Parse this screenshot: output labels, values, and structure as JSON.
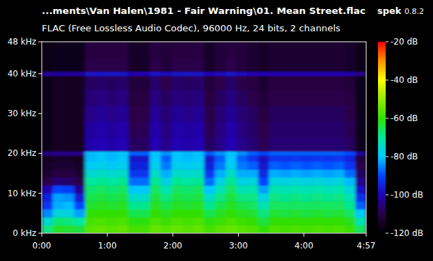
{
  "chart_data": {
    "type": "heatmap",
    "title": "...ments\\Van Halen\\1981 - Fair Warning\\01. Mean Street.flac",
    "app": "spek",
    "version": "0.8.2",
    "subtitle": "FLAC (Free Lossless Audio Codec), 96000 Hz, 24 bits, 2 channels",
    "xlim": [
      0,
      297
    ],
    "xticks": [
      {
        "value": 0,
        "label": "0:00"
      },
      {
        "value": 60,
        "label": "1:00"
      },
      {
        "value": 120,
        "label": "2:00"
      },
      {
        "value": 180,
        "label": "3:00"
      },
      {
        "value": 240,
        "label": "4:00"
      },
      {
        "value": 297,
        "label": "4:57"
      }
    ],
    "ylim": [
      0,
      48
    ],
    "yticks": [
      {
        "value": 0,
        "label": "0 kHz"
      },
      {
        "value": 10,
        "label": "10 kHz"
      },
      {
        "value": 20,
        "label": "20 kHz"
      },
      {
        "value": 30,
        "label": "30 kHz"
      },
      {
        "value": 40,
        "label": "40 kHz"
      },
      {
        "value": 48,
        "label": "48 kHz"
      }
    ],
    "color_range": [
      -120,
      -20
    ],
    "color_ticks": [
      {
        "value": -20,
        "label": "-20 dB"
      },
      {
        "value": -40,
        "label": "-40 dB"
      },
      {
        "value": -60,
        "label": "-60 dB"
      },
      {
        "value": -80,
        "label": "-80 dB"
      },
      {
        "value": -100,
        "label": "-100 dB"
      },
      {
        "value": -120,
        "label": "-120 dB"
      }
    ],
    "x_edges": [
      0,
      9.9,
      19.8,
      29.7,
      39.6,
      49.5,
      59.4,
      69.3,
      79.2,
      89.1,
      99,
      108.9,
      118.8,
      128.7,
      138.6,
      148.5,
      158.4,
      168.3,
      178.2,
      188.1,
      198,
      207.9,
      217.8,
      227.7,
      237.6,
      247.5,
      257.4,
      267.3,
      277.2,
      287.1,
      297
    ],
    "y_edges": [
      0,
      2,
      4,
      6,
      8,
      10,
      12,
      14,
      16,
      18,
      19.5,
      20.5,
      24,
      28,
      32,
      36,
      39.5,
      40.5,
      44,
      48
    ],
    "cells": [
      [
        -68,
        -75,
        -85,
        -92,
        -95,
        -100,
        -110,
        -113,
        -114,
        -115,
        -105,
        -116,
        -116,
        -116,
        -116,
        -116,
        -103,
        -117,
        -117
      ],
      [
        -62,
        -67,
        -76,
        -82,
        -83,
        -90,
        -106,
        -111,
        -113,
        -114,
        -104,
        -115,
        -115,
        -115,
        -115,
        -115,
        -102,
        -116,
        -116
      ],
      [
        -63,
        -68,
        -77,
        -81,
        -84,
        -91,
        -107,
        -111,
        -113,
        -114,
        -104,
        -115,
        -115,
        -115,
        -115,
        -115,
        -102,
        -116,
        -116
      ],
      [
        -64,
        -70,
        -83,
        -90,
        -96,
        -103,
        -110,
        -113,
        -114,
        -115,
        -104,
        -115,
        -115,
        -115,
        -115,
        -115,
        -102,
        -116,
        -116
      ],
      [
        -56,
        -58,
        -60,
        -63,
        -65,
        -67,
        -70,
        -75,
        -79,
        -81,
        -81,
        -101,
        -102,
        -104,
        -106,
        -108,
        -97,
        -110,
        -111
      ],
      [
        -55,
        -57,
        -60,
        -62,
        -64,
        -66,
        -69,
        -74,
        -78,
        -80,
        -80,
        -100,
        -101,
        -103,
        -105,
        -107,
        -97,
        -110,
        -111
      ],
      [
        -56,
        -58,
        -60,
        -63,
        -65,
        -67,
        -70,
        -75,
        -79,
        -81,
        -81,
        -101,
        -102,
        -104,
        -106,
        -108,
        -97,
        -110,
        -111
      ],
      [
        -55,
        -57,
        -60,
        -62,
        -64,
        -66,
        -69,
        -74,
        -78,
        -80,
        -80,
        -100,
        -101,
        -103,
        -105,
        -107,
        -97,
        -110,
        -111
      ],
      [
        -58,
        -61,
        -65,
        -69,
        -74,
        -80,
        -87,
        -92,
        -95,
        -97,
        -88,
        -108,
        -109,
        -110,
        -111,
        -112,
        -100,
        -114,
        -114
      ],
      [
        -58,
        -61,
        -65,
        -69,
        -74,
        -80,
        -87,
        -92,
        -95,
        -97,
        -88,
        -108,
        -109,
        -110,
        -111,
        -112,
        -100,
        -114,
        -114
      ],
      [
        -55,
        -57,
        -60,
        -62,
        -64,
        -66,
        -69,
        -74,
        -78,
        -80,
        -80,
        -100,
        -101,
        -103,
        -105,
        -107,
        -97,
        -110,
        -111
      ],
      [
        -56,
        -59,
        -62,
        -65,
        -68,
        -72,
        -77,
        -82,
        -86,
        -88,
        -84,
        -104,
        -105,
        -106,
        -108,
        -110,
        -99,
        -112,
        -112
      ],
      [
        -55,
        -57,
        -60,
        -62,
        -64,
        -66,
        -69,
        -74,
        -78,
        -80,
        -80,
        -100,
        -101,
        -103,
        -105,
        -107,
        -97,
        -110,
        -111
      ],
      [
        -56,
        -58,
        -60,
        -63,
        -65,
        -67,
        -70,
        -75,
        -79,
        -81,
        -81,
        -101,
        -102,
        -104,
        -106,
        -108,
        -97,
        -110,
        -111
      ],
      [
        -55,
        -57,
        -60,
        -62,
        -64,
        -66,
        -69,
        -74,
        -78,
        -80,
        -80,
        -100,
        -101,
        -103,
        -105,
        -107,
        -97,
        -110,
        -111
      ],
      [
        -58,
        -61,
        -65,
        -69,
        -74,
        -80,
        -87,
        -92,
        -95,
        -97,
        -88,
        -108,
        -109,
        -110,
        -111,
        -112,
        -100,
        -114,
        -114
      ],
      [
        -56,
        -59,
        -62,
        -65,
        -68,
        -72,
        -77,
        -82,
        -86,
        -88,
        -84,
        -104,
        -105,
        -106,
        -108,
        -110,
        -99,
        -112,
        -112
      ],
      [
        -55,
        -57,
        -60,
        -62,
        -64,
        -66,
        -69,
        -74,
        -78,
        -80,
        -80,
        -100,
        -101,
        -103,
        -105,
        -107,
        -97,
        -110,
        -111
      ],
      [
        -56,
        -59,
        -62,
        -65,
        -68,
        -72,
        -77,
        -82,
        -86,
        -88,
        -84,
        -104,
        -105,
        -106,
        -108,
        -110,
        -99,
        -112,
        -112
      ],
      [
        -57,
        -60,
        -63,
        -66,
        -68,
        -71,
        -76,
        -82,
        -88,
        -92,
        -88,
        -106,
        -107,
        -108,
        -110,
        -111,
        -100,
        -113,
        -113
      ],
      [
        -60,
        -64,
        -68,
        -72,
        -77,
        -83,
        -90,
        -94,
        -97,
        -99,
        -90,
        -109,
        -110,
        -111,
        -112,
        -113,
        -100,
        -114,
        -114
      ],
      [
        -57,
        -60,
        -63,
        -66,
        -68,
        -71,
        -76,
        -82,
        -88,
        -92,
        -88,
        -106,
        -107,
        -108,
        -110,
        -111,
        -100,
        -113,
        -113
      ],
      [
        -58,
        -60,
        -64,
        -66,
        -69,
        -72,
        -77,
        -83,
        -89,
        -93,
        -88,
        -106,
        -107,
        -108,
        -110,
        -111,
        -100,
        -113,
        -113
      ],
      [
        -57,
        -60,
        -63,
        -66,
        -68,
        -71,
        -76,
        -82,
        -88,
        -92,
        -88,
        -106,
        -107,
        -108,
        -110,
        -111,
        -100,
        -113,
        -113
      ],
      [
        -58,
        -60,
        -64,
        -66,
        -69,
        -72,
        -77,
        -83,
        -89,
        -93,
        -88,
        -106,
        -107,
        -108,
        -110,
        -111,
        -100,
        -113,
        -113
      ],
      [
        -57,
        -60,
        -63,
        -66,
        -68,
        -71,
        -76,
        -82,
        -88,
        -92,
        -88,
        -106,
        -107,
        -108,
        -110,
        -111,
        -100,
        -113,
        -113
      ],
      [
        -58,
        -60,
        -64,
        -66,
        -69,
        -72,
        -77,
        -83,
        -89,
        -93,
        -88,
        -106,
        -107,
        -108,
        -110,
        -111,
        -100,
        -113,
        -113
      ],
      [
        -57,
        -60,
        -63,
        -66,
        -68,
        -71,
        -76,
        -82,
        -88,
        -92,
        -88,
        -106,
        -107,
        -108,
        -110,
        -111,
        -100,
        -113,
        -113
      ],
      [
        -59,
        -62,
        -66,
        -69,
        -72,
        -76,
        -81,
        -87,
        -92,
        -95,
        -90,
        -108,
        -109,
        -110,
        -111,
        -112,
        -101,
        -114,
        -114
      ],
      [
        -66,
        -72,
        -80,
        -88,
        -93,
        -98,
        -104,
        -108,
        -110,
        -112,
        -102,
        -116,
        -116,
        -116,
        -116,
        -116,
        -104,
        -117,
        -117
      ]
    ]
  }
}
